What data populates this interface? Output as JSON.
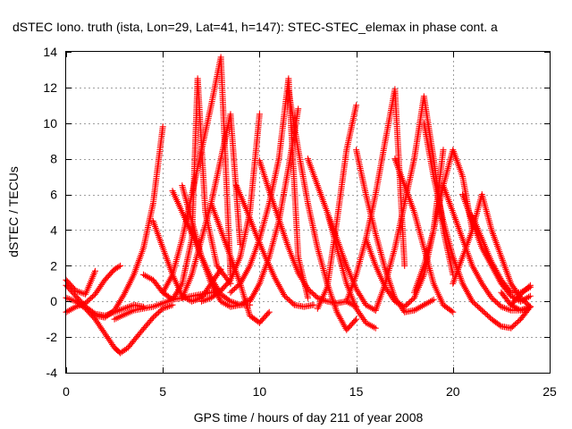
{
  "chart_data": {
    "type": "scatter",
    "title": "dSTEC Iono. truth (ista, Lon=29, Lat=41, h=147): STEC-STEC_elemax in phase cont. a",
    "xlabel": "GPS time / hours of day 211 of year 2008",
    "ylabel": "dSTEC  / TECUs",
    "xlim": [
      0,
      25
    ],
    "ylim": [
      -4,
      14
    ],
    "xticks": [
      0,
      5,
      10,
      15,
      20,
      25
    ],
    "yticks": [
      -4,
      -2,
      0,
      2,
      4,
      6,
      8,
      10,
      12,
      14
    ],
    "x_tick_labels": [
      "0",
      "5",
      "10",
      "15",
      "20",
      "25"
    ],
    "y_tick_labels": [
      "-4",
      "-2",
      "0",
      "2",
      "4",
      "6",
      "8",
      "10",
      "12",
      "14"
    ],
    "grid": true,
    "marker": "+",
    "series_color": "#ff0000",
    "series": [
      {
        "x": [
          0.0,
          0.5,
          1.0,
          1.5
        ],
        "y": [
          1.2,
          0.6,
          0.4,
          1.7
        ]
      },
      {
        "x": [
          0.0,
          0.5,
          1.0,
          1.5,
          2.0,
          2.5,
          2.8
        ],
        "y": [
          -0.6,
          -0.3,
          -0.1,
          0.4,
          1.2,
          1.8,
          2.0
        ]
      },
      {
        "x": [
          0.0,
          0.5,
          1.0,
          1.5,
          2.0,
          2.5,
          3.0,
          3.5,
          4.0
        ],
        "y": [
          0.9,
          0.3,
          -0.3,
          -0.7,
          -0.8,
          -0.6,
          -0.4,
          -0.2,
          -0.3
        ]
      },
      {
        "x": [
          0.0,
          0.5,
          1.0,
          1.5,
          2.0,
          2.5,
          2.8,
          3.2,
          3.8,
          4.5,
          5.0,
          5.5
        ],
        "y": [
          0.2,
          0.0,
          -0.4,
          -1.0,
          -1.8,
          -2.6,
          -2.9,
          -2.6,
          -1.8,
          -0.9,
          -0.4,
          -0.2
        ]
      },
      {
        "x": [
          1.5,
          2.0,
          2.5,
          3.0,
          3.5,
          4.0,
          4.5,
          5.0
        ],
        "y": [
          -0.8,
          -0.9,
          -0.5,
          0.4,
          1.5,
          3.0,
          5.5,
          9.8
        ]
      },
      {
        "x": [
          2.5,
          3.5,
          4.5,
          5.5,
          6.5,
          7.5,
          8.0
        ],
        "y": [
          -1.0,
          -0.5,
          -0.3,
          0.1,
          0.3,
          0.5,
          0.6
        ]
      },
      {
        "x": [
          4.0,
          4.5,
          5.0,
          5.5,
          6.0,
          6.5,
          6.8,
          7.2,
          7.8,
          8.5
        ],
        "y": [
          1.5,
          1.2,
          0.5,
          0.1,
          1.0,
          3.5,
          12.5,
          5.0,
          2.0,
          1.0
        ]
      },
      {
        "x": [
          4.5,
          5.0,
          5.5,
          6.0,
          6.5,
          7.0,
          7.5,
          8.0
        ],
        "y": [
          4.5,
          3.0,
          1.5,
          0.3,
          0.0,
          0.2,
          1.0,
          1.8
        ]
      },
      {
        "x": [
          5.0,
          5.5,
          6.0,
          6.5,
          7.0,
          7.5,
          8.0,
          8.5
        ],
        "y": [
          0.5,
          1.5,
          3.5,
          6.0,
          8.5,
          11.0,
          13.7,
          1.5
        ]
      },
      {
        "x": [
          5.5,
          6.0,
          6.5,
          7.0,
          7.5,
          8.0,
          8.5,
          9.0,
          9.5
        ],
        "y": [
          6.2,
          5.0,
          3.8,
          2.5,
          1.3,
          0.4,
          0.0,
          -0.2,
          -0.2
        ]
      },
      {
        "x": [
          6.0,
          6.5,
          7.0,
          7.5,
          8.0,
          8.5,
          9.0,
          9.5
        ],
        "y": [
          6.5,
          4.5,
          2.5,
          1.0,
          0.0,
          -0.3,
          -0.2,
          0.1
        ]
      },
      {
        "x": [
          6.0,
          6.5,
          7.0,
          7.5,
          8.0,
          8.5,
          9.0
        ],
        "y": [
          0.2,
          1.5,
          3.5,
          5.5,
          8.0,
          10.5,
          3.2
        ]
      },
      {
        "x": [
          7.0,
          7.5,
          8.0,
          8.5,
          9.0,
          9.5,
          10.0
        ],
        "y": [
          0.0,
          0.2,
          0.6,
          1.2,
          2.5,
          5.0,
          10.5
        ]
      },
      {
        "x": [
          7.5,
          8.0,
          8.5,
          9.0,
          9.5,
          10.0,
          10.5
        ],
        "y": [
          5.5,
          4.0,
          2.5,
          1.0,
          -0.8,
          -1.2,
          -0.6
        ]
      },
      {
        "x": [
          8.5,
          9.0,
          9.5,
          10.0,
          10.5,
          11.0,
          11.5,
          12.0,
          12.5
        ],
        "y": [
          0.5,
          1.0,
          2.0,
          3.5,
          5.5,
          8.0,
          12.5,
          2.5,
          0.2
        ]
      },
      {
        "x": [
          8.8,
          9.3,
          9.8,
          10.3,
          10.8,
          11.3,
          11.8,
          12.3,
          12.8
        ],
        "y": [
          6.5,
          5.2,
          3.8,
          2.5,
          1.3,
          0.3,
          -0.2,
          -0.3,
          -0.2
        ]
      },
      {
        "x": [
          9.5,
          10.0,
          10.5,
          11.0,
          11.5,
          12.0
        ],
        "y": [
          0.0,
          1.0,
          2.5,
          4.5,
          7.5,
          10.8
        ]
      },
      {
        "x": [
          10.0,
          10.5,
          11.0,
          11.5,
          12.0,
          12.5,
          13.0,
          13.5,
          14.0,
          14.5,
          15.0
        ],
        "y": [
          7.9,
          6.2,
          4.6,
          3.0,
          1.6,
          0.7,
          0.2,
          0.0,
          -0.1,
          0.0,
          -0.3
        ]
      },
      {
        "x": [
          11.5,
          12.0,
          12.5,
          13.0,
          13.5,
          14.0,
          14.5,
          15.0
        ],
        "y": [
          11.8,
          8.5,
          5.5,
          3.0,
          1.0,
          -0.6,
          -1.6,
          -1.0
        ]
      },
      {
        "x": [
          12.5,
          13.0,
          13.5,
          14.0,
          14.5,
          15.0,
          15.5,
          16.0
        ],
        "y": [
          8.0,
          6.5,
          5.0,
          3.5,
          2.0,
          0.7,
          -0.2,
          -0.5
        ]
      },
      {
        "x": [
          13.0,
          13.5,
          14.0,
          14.5,
          15.0
        ],
        "y": [
          -0.4,
          0.8,
          4.5,
          8.5,
          11.0
        ]
      },
      {
        "x": [
          13.5,
          14.0,
          14.5,
          15.0,
          15.5,
          16.0
        ],
        "y": [
          5.0,
          3.0,
          1.0,
          -0.4,
          -1.2,
          -1.5
        ]
      },
      {
        "x": [
          14.5,
          15.0,
          15.5,
          16.0,
          16.5,
          17.0,
          17.5
        ],
        "y": [
          0.0,
          1.5,
          3.5,
          6.0,
          9.0,
          11.9,
          2.0
        ]
      },
      {
        "x": [
          15.0,
          15.5,
          16.0,
          16.5,
          17.0,
          17.5,
          18.0,
          18.5,
          19.0
        ],
        "y": [
          8.5,
          6.0,
          3.8,
          1.8,
          0.2,
          -0.6,
          -0.5,
          -0.2,
          0.1
        ]
      },
      {
        "x": [
          15.5,
          16.0,
          16.5,
          17.0,
          17.5,
          18.0,
          18.5,
          19.0,
          19.5
        ],
        "y": [
          3.5,
          2.0,
          0.8,
          0.0,
          -0.3,
          0.2,
          1.5,
          4.0,
          8.5
        ]
      },
      {
        "x": [
          16.0,
          16.5,
          17.0,
          17.5,
          18.0,
          18.5,
          19.0,
          19.5,
          20.0
        ],
        "y": [
          -0.5,
          1.0,
          3.0,
          5.5,
          8.0,
          11.5,
          8.0,
          4.0,
          1.5
        ]
      },
      {
        "x": [
          17.0,
          17.5,
          18.0,
          18.5,
          19.0,
          19.5,
          20.0
        ],
        "y": [
          8.0,
          6.5,
          5.0,
          3.0,
          1.0,
          -0.2,
          -0.6
        ]
      },
      {
        "x": [
          18.0,
          18.5,
          19.0,
          19.5,
          20.0,
          20.5,
          21.0
        ],
        "y": [
          0.5,
          2.0,
          4.0,
          6.5,
          8.5,
          7.0,
          4.0
        ]
      },
      {
        "x": [
          18.5,
          19.0,
          19.5,
          20.0,
          20.5,
          21.0,
          21.5,
          22.0,
          22.5,
          23.0,
          23.5,
          24.0
        ],
        "y": [
          10.0,
          7.0,
          4.5,
          2.5,
          1.0,
          0.0,
          -0.5,
          -1.0,
          -1.4,
          -1.5,
          -1.0,
          -0.3
        ]
      },
      {
        "x": [
          19.5,
          20.0,
          20.5,
          21.0,
          21.5,
          22.0,
          22.5,
          23.0,
          23.5,
          24.0
        ],
        "y": [
          6.5,
          5.0,
          3.5,
          2.0,
          1.0,
          0.2,
          -0.3,
          -0.5,
          -0.5,
          -0.3
        ]
      },
      {
        "x": [
          20.0,
          20.5,
          21.0,
          21.5,
          22.0,
          22.5,
          23.0,
          23.5,
          24.0
        ],
        "y": [
          1.0,
          2.5,
          4.0,
          6.0,
          4.0,
          2.5,
          1.0,
          0.2,
          -0.3
        ]
      },
      {
        "x": [
          20.5,
          21.0,
          21.5,
          22.0,
          22.5,
          23.0,
          23.5,
          24.0
        ],
        "y": [
          6.0,
          4.5,
          3.0,
          2.0,
          1.0,
          0.3,
          0.0,
          0.3
        ]
      },
      {
        "x": [
          21.0,
          21.5,
          22.0,
          22.5,
          23.0,
          23.5,
          24.0
        ],
        "y": [
          4.8,
          3.5,
          2.2,
          1.2,
          0.5,
          0.5,
          0.8
        ]
      },
      {
        "x": [
          22.5,
          23.0,
          23.5,
          24.0
        ],
        "y": [
          0.5,
          -0.2,
          -0.5,
          -0.3
        ]
      },
      {
        "x": [
          23.0,
          23.5,
          24.0
        ],
        "y": [
          -0.2,
          0.4,
          0.9
        ]
      }
    ]
  }
}
